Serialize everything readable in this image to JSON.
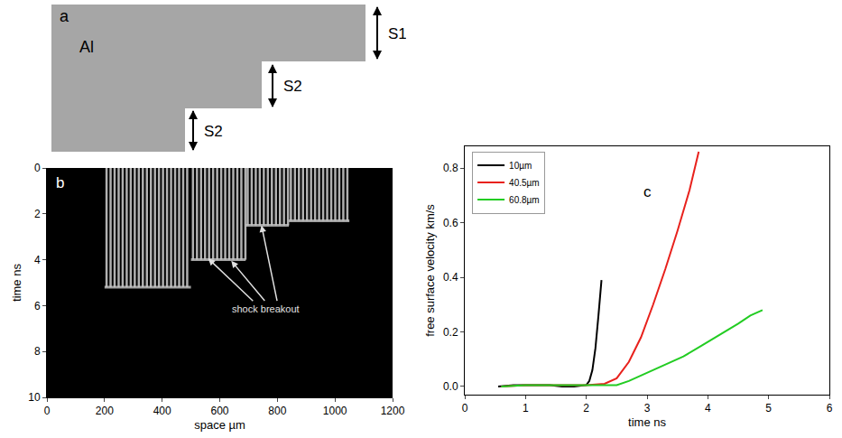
{
  "diagram": {
    "letter": "a",
    "material": "Al",
    "step_labels": [
      "S1",
      "S2",
      "S2"
    ]
  },
  "chart_data": [
    {
      "letter": "b",
      "type": "streak",
      "xlabel": "space µm",
      "ylabel": "time ns",
      "xlim": [
        0,
        1200
      ],
      "xticks": [
        0,
        200,
        400,
        600,
        800,
        1000,
        1200
      ],
      "ylim": [
        10,
        0
      ],
      "yticks": [
        0,
        2,
        4,
        6,
        8,
        10
      ],
      "segments": [
        {
          "x_start": 200,
          "x_end": 500,
          "breakout": 5.2
        },
        {
          "x_start": 500,
          "x_end": 690,
          "breakout": 4.0
        },
        {
          "x_start": 690,
          "x_end": 840,
          "breakout": 2.5
        },
        {
          "x_start": 840,
          "x_end": 1050,
          "breakout": 2.3
        }
      ],
      "annotation": {
        "text": "shock breakout",
        "x": 760,
        "y": 6.15,
        "targets": [
          [
            560,
            3.95
          ],
          [
            640,
            4.05
          ],
          [
            745,
            2.5
          ]
        ]
      }
    },
    {
      "letter": "c",
      "type": "line",
      "xlabel": "time ns",
      "ylabel": "free surface velocity km/s",
      "xlim": [
        0,
        6
      ],
      "xticks": [
        0,
        1,
        2,
        3,
        4,
        5,
        6
      ],
      "ylim": [
        -0.03,
        0.88
      ],
      "yticks": [
        {
          "value": 0,
          "label": "0.0"
        },
        0.2,
        0.4,
        0.6,
        0.8
      ],
      "legend": "upper left",
      "series": [
        {
          "name": "10µm",
          "color": "#000000",
          "x": [
            0.55,
            0.8,
            1.0,
            1.2,
            1.4,
            1.6,
            1.8,
            2.0,
            2.05,
            2.1,
            2.15,
            2.2,
            2.25
          ],
          "values": [
            0,
            0.005,
            0.005,
            0.005,
            0.005,
            0,
            0,
            0.005,
            0.02,
            0.06,
            0.14,
            0.26,
            0.39
          ]
        },
        {
          "name": "40.5µm",
          "color": "#e8211c",
          "x": [
            0.6,
            1.0,
            1.5,
            2.0,
            2.3,
            2.5,
            2.7,
            2.9,
            3.1,
            3.3,
            3.5,
            3.7,
            3.85
          ],
          "values": [
            0,
            0.005,
            0.005,
            0.005,
            0.01,
            0.03,
            0.09,
            0.18,
            0.3,
            0.43,
            0.57,
            0.72,
            0.86
          ]
        },
        {
          "name": "60.8µm",
          "color": "#22cc22",
          "x": [
            0.6,
            1.0,
            1.5,
            2.0,
            2.5,
            2.7,
            3.0,
            3.3,
            3.6,
            3.9,
            4.2,
            4.5,
            4.7,
            4.9
          ],
          "values": [
            0,
            0.005,
            0.005,
            0.005,
            0.005,
            0.02,
            0.05,
            0.08,
            0.11,
            0.15,
            0.19,
            0.23,
            0.26,
            0.28
          ]
        }
      ]
    }
  ]
}
